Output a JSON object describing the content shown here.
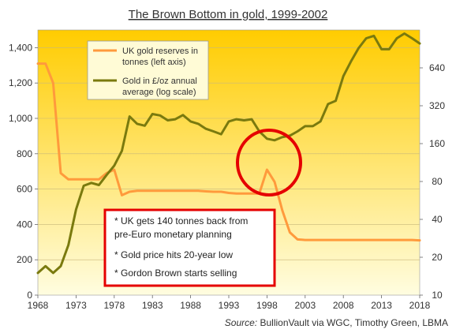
{
  "chart_data": {
    "type": "line",
    "title": "The Brown Bottom in gold, 1999-2002",
    "source_label": "Source:",
    "source": "BullionVault via WGC, Timothy Green, LBMA",
    "x_ticks": [
      "1968",
      "1973",
      "1978",
      "1983",
      "1988",
      "1993",
      "1998",
      "2003",
      "2008",
      "2013",
      "2018"
    ],
    "xlim": [
      1968,
      2018
    ],
    "y_left_ticks": [
      "0",
      "200",
      "400",
      "600",
      "800",
      "1,000",
      "1,200",
      "1,400"
    ],
    "y_left_lim": [
      0,
      1500
    ],
    "y_right_scale": "log",
    "y_right_ticks": [
      "10",
      "20",
      "40",
      "80",
      "160",
      "320",
      "640"
    ],
    "y_right_lim": [
      10,
      1280
    ],
    "legend_position": "top-left",
    "colors": {
      "uk_reserves": "#ff9a3c",
      "gold_price": "#7a7a0e",
      "highlight": "#e50000",
      "background_top": "#ffcc00",
      "background_bottom": "#fffde0"
    },
    "legend": [
      "UK gold reserves in tonnes (left axis)",
      "Gold in £/oz annual average (log scale)"
    ],
    "annotations": [
      "* UK gets 140 tonnes back from pre-Euro  monetary planning",
      "* Gold price hits 20-year low",
      "* Gordon Brown  starts selling"
    ],
    "series": [
      {
        "name": "UK gold reserves in tonnes (left axis)",
        "axis": "left",
        "x": [
          1968,
          1969,
          1970,
          1971,
          1972,
          1973,
          1974,
          1975,
          1976,
          1977,
          1978,
          1979,
          1980,
          1981,
          1982,
          1983,
          1984,
          1985,
          1986,
          1987,
          1988,
          1989,
          1990,
          1991,
          1992,
          1993,
          1994,
          1995,
          1996,
          1997,
          1998,
          1999,
          2000,
          2001,
          2002,
          2003,
          2004,
          2005,
          2006,
          2007,
          2008,
          2009,
          2010,
          2011,
          2012,
          2013,
          2014,
          2015,
          2016,
          2017,
          2018
        ],
        "values": [
          1310,
          1310,
          1200,
          690,
          655,
          655,
          655,
          655,
          655,
          690,
          710,
          565,
          585,
          590,
          590,
          590,
          590,
          590,
          590,
          590,
          590,
          590,
          587,
          585,
          585,
          578,
          575,
          575,
          575,
          575,
          710,
          640,
          480,
          355,
          315,
          312,
          312,
          312,
          312,
          312,
          312,
          312,
          312,
          312,
          312,
          312,
          312,
          312,
          312,
          312,
          310
        ]
      },
      {
        "name": "Gold in £/oz annual average (log scale)",
        "axis": "right",
        "x": [
          1968,
          1969,
          1970,
          1971,
          1972,
          1973,
          1974,
          1975,
          1976,
          1977,
          1978,
          1979,
          1980,
          1981,
          1982,
          1983,
          1984,
          1985,
          1986,
          1987,
          1988,
          1989,
          1990,
          1991,
          1992,
          1993,
          1994,
          1995,
          1996,
          1997,
          1998,
          1999,
          2000,
          2001,
          2002,
          2003,
          2004,
          2005,
          2006,
          2007,
          2008,
          2009,
          2010,
          2011,
          2012,
          2013,
          2014,
          2015,
          2016,
          2017,
          2018
        ],
        "values": [
          15,
          17,
          15,
          17,
          25,
          48,
          74,
          78,
          75,
          90,
          107,
          140,
          263,
          230,
          222,
          275,
          268,
          245,
          250,
          270,
          240,
          230,
          210,
          200,
          190,
          240,
          250,
          245,
          250,
          200,
          175,
          170,
          180,
          185,
          200,
          220,
          220,
          240,
          330,
          350,
          550,
          720,
          920,
          1100,
          1150,
          900,
          900,
          1100,
          1200,
          1100,
          1000
        ]
      }
    ]
  }
}
